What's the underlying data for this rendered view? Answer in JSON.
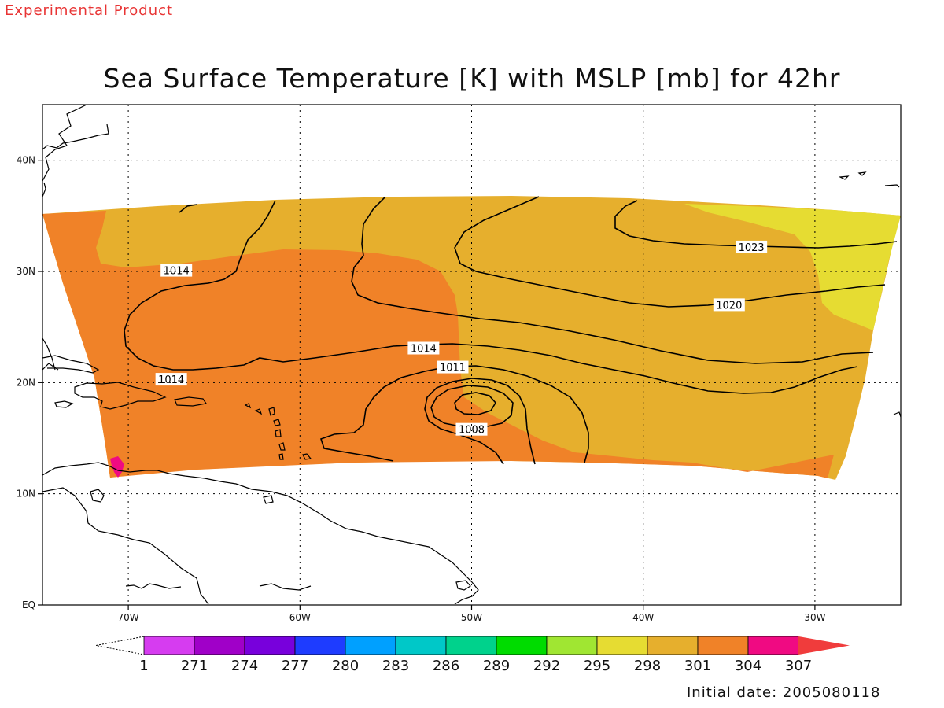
{
  "header": {
    "experimental_label": "Experimental Product",
    "title": "Sea Surface Temperature [K] with MSLP [mb] for 42hr"
  },
  "footer": {
    "initial_date": "Initial date: 2005080118"
  },
  "map": {
    "lon_range": [
      -75,
      -25
    ],
    "lat_range": [
      0,
      45
    ],
    "lon_ticks": [
      {
        "value": -70,
        "label": "70W"
      },
      {
        "value": -60,
        "label": "60W"
      },
      {
        "value": -50,
        "label": "50W"
      },
      {
        "value": -40,
        "label": "40W"
      },
      {
        "value": -30,
        "label": "30W"
      }
    ],
    "lat_ticks": [
      {
        "value": 0,
        "label": "EQ"
      },
      {
        "value": 10,
        "label": "10N"
      },
      {
        "value": 20,
        "label": "20N"
      },
      {
        "value": 30,
        "label": "30N"
      },
      {
        "value": 40,
        "label": "40N"
      }
    ],
    "grid": "dotted",
    "isobar_labels": [
      {
        "text": "1014",
        "lon": -67.2,
        "lat": 30.1
      },
      {
        "text": "1014",
        "lon": -67.5,
        "lat": 20.3
      },
      {
        "text": "1014",
        "lon": -52.8,
        "lat": 23.1
      },
      {
        "text": "1011",
        "lon": -51.1,
        "lat": 21.4
      },
      {
        "text": "1008",
        "lon": -50.0,
        "lat": 15.8
      },
      {
        "text": "1020",
        "lon": -35.0,
        "lat": 27.0
      },
      {
        "text": "1023",
        "lon": -33.7,
        "lat": 32.2
      }
    ]
  },
  "colorbar": {
    "labels": [
      "1",
      "271",
      "274",
      "277",
      "280",
      "283",
      "286",
      "289",
      "292",
      "295",
      "298",
      "301",
      "304",
      "307"
    ],
    "colors": [
      "#d63cf0",
      "#a000c8",
      "#7800dc",
      "#1e3cff",
      "#00a0ff",
      "#00c8c8",
      "#00d28c",
      "#00dc00",
      "#a0e632",
      "#e6dc32",
      "#e6af2d",
      "#f08228",
      "#f00a82",
      "#f03c3c"
    ]
  },
  "sst_colors": {
    "c295": "#e6dc32",
    "c298": "#e6af2d",
    "c301": "#f08228",
    "c304": "#f00a82"
  }
}
